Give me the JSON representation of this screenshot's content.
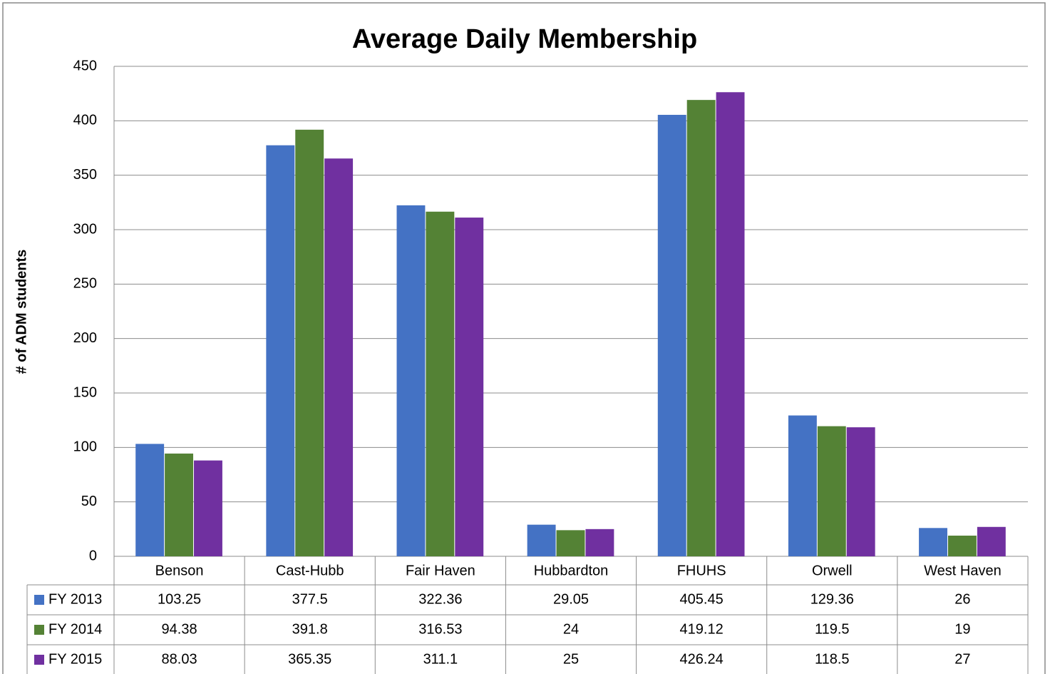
{
  "chart_data": {
    "type": "bar",
    "title": "Average Daily Membership",
    "y_label": "# of ADM students",
    "categories": [
      "Benson",
      "Cast-Hubb",
      "Fair Haven",
      "Hubbardton",
      "FHUHS",
      "Orwell",
      "West Haven"
    ],
    "series": [
      {
        "name": "FY 2013",
        "color": "#4472c4",
        "values": [
          103.25,
          377.5,
          322.36,
          29.05,
          405.45,
          129.36,
          26
        ]
      },
      {
        "name": "FY 2014",
        "color": "#548235",
        "values": [
          94.38,
          391.8,
          316.53,
          24,
          419.12,
          119.5,
          19
        ]
      },
      {
        "name": "FY 2015",
        "color": "#7030a0",
        "values": [
          88.03,
          365.35,
          311.1,
          25,
          426.24,
          118.5,
          27
        ]
      }
    ],
    "ylim": [
      0,
      450
    ],
    "yticks": [
      0,
      50,
      100,
      150,
      200,
      250,
      300,
      350,
      400,
      450
    ],
    "grid": true,
    "data_table": true
  }
}
